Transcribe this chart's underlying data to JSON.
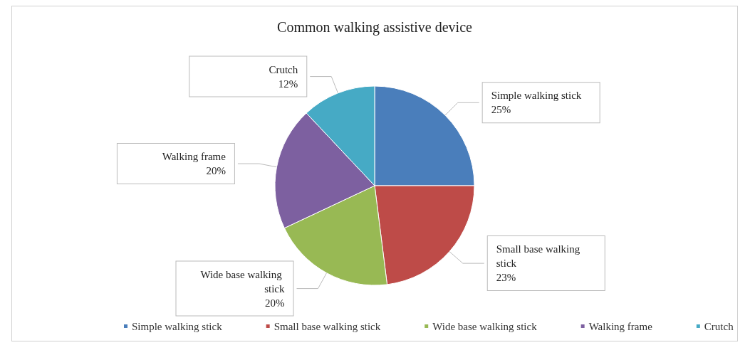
{
  "chart_data": {
    "type": "pie",
    "title": "Common walking assistive device",
    "categories": [
      "Simple walking stick",
      "Small base walking stick",
      "Wide base walking stick",
      "Walking frame",
      "Crutch"
    ],
    "values": [
      25,
      23,
      20,
      20,
      12
    ],
    "value_labels": [
      "25%",
      "23%",
      "20%",
      "20%",
      "12%"
    ],
    "colors": [
      "#4a7ebb",
      "#be4b48",
      "#98b954",
      "#7d60a0",
      "#46aac5"
    ],
    "legend": "bottom"
  }
}
